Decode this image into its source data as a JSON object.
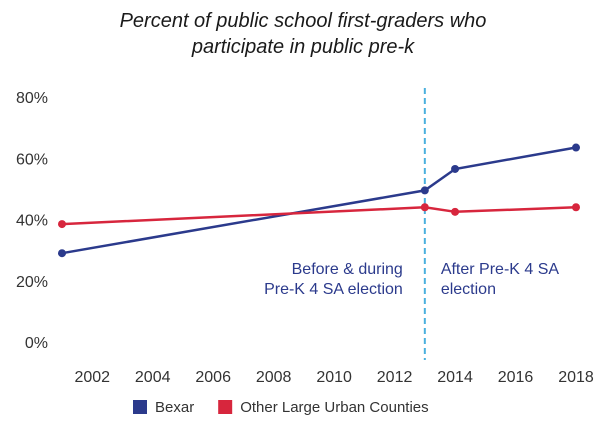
{
  "chart_data": {
    "type": "line",
    "title": "Percent of public school first-graders who\nparticipate in public pre-k",
    "xlabel": "",
    "ylabel": "",
    "xlim": [
      2001,
      2018
    ],
    "ylim": [
      0,
      80
    ],
    "x_ticks": [
      2002,
      2004,
      2006,
      2008,
      2010,
      2012,
      2014,
      2016,
      2018
    ],
    "y_ticks": [
      0,
      20,
      40,
      60,
      80
    ],
    "y_tick_labels": [
      "0%",
      "20%",
      "40%",
      "60%",
      "80%"
    ],
    "grid": false,
    "legend_position": "bottom",
    "series": [
      {
        "name": "Bexar",
        "color": "#2b3a8c",
        "points": [
          {
            "x": 2001,
            "y": 29
          },
          {
            "x": 2013,
            "y": 49.5
          },
          {
            "x": 2014,
            "y": 56.5
          },
          {
            "x": 2018,
            "y": 63.5
          }
        ]
      },
      {
        "name": "Other Large Urban Counties",
        "color": "#d7263d",
        "points": [
          {
            "x": 2001,
            "y": 38.5
          },
          {
            "x": 2013,
            "y": 44
          },
          {
            "x": 2014,
            "y": 42.5
          },
          {
            "x": 2018,
            "y": 44
          }
        ]
      }
    ],
    "reference_line": {
      "x": 2013,
      "color": "#4ab0de",
      "style": "dashed"
    },
    "annotations": [
      {
        "text_lines": [
          "Before & during",
          "Pre-K 4 SA election"
        ],
        "align": "right",
        "color": "#2b3a8c"
      },
      {
        "text_lines": [
          "After Pre-K 4 SA",
          "election"
        ],
        "align": "left",
        "color": "#2b3a8c"
      }
    ]
  }
}
